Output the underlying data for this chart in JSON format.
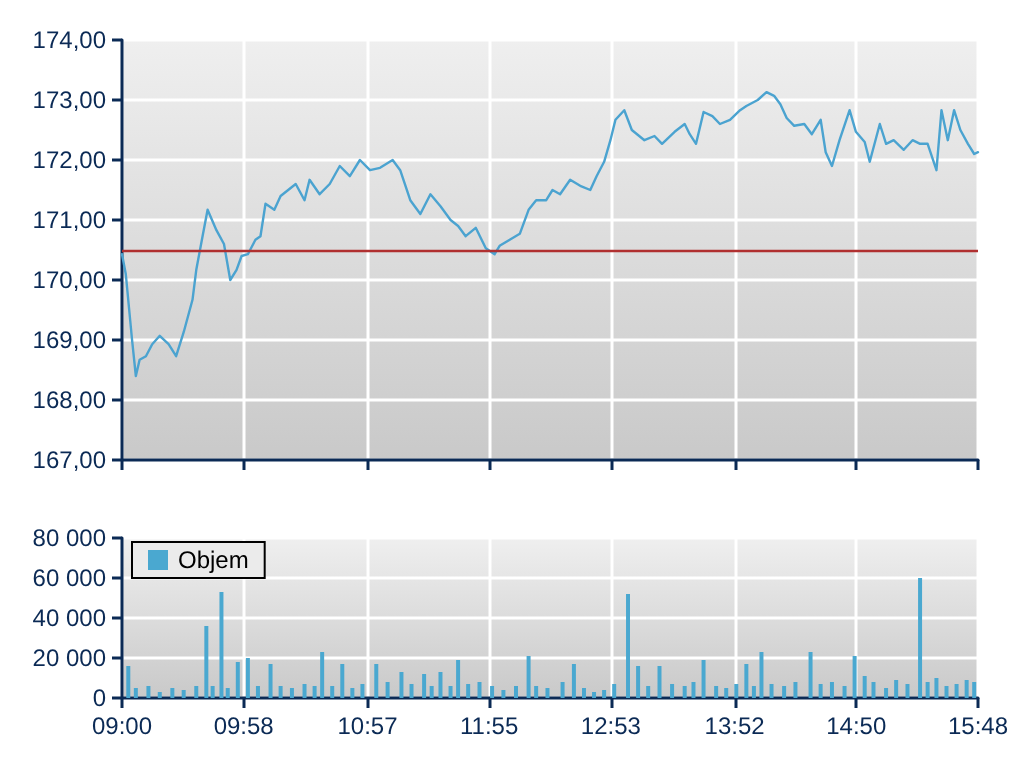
{
  "chart_data": [
    {
      "type": "line",
      "x": [
        9.0,
        9.03,
        9.08,
        9.11,
        9.14,
        9.19,
        9.24,
        9.3,
        9.37,
        9.43,
        9.49,
        9.56,
        9.59,
        9.64,
        9.68,
        9.75,
        9.81,
        9.86,
        9.91,
        9.95,
        10.0,
        10.06,
        10.1,
        10.14,
        10.21,
        10.26,
        10.32,
        10.38,
        10.45,
        10.49,
        10.57,
        10.65,
        10.73,
        10.81,
        10.89,
        10.97,
        11.05,
        11.15,
        11.21,
        11.29,
        11.37,
        11.45,
        11.53,
        11.61,
        11.67,
        11.73,
        11.81,
        11.89,
        11.96,
        12.0,
        12.08,
        12.16,
        12.23,
        12.29,
        12.37,
        12.42,
        12.48,
        12.56,
        12.64,
        12.72,
        12.77,
        12.83,
        12.88,
        12.92,
        12.99,
        13.05,
        13.15,
        13.23,
        13.29,
        13.39,
        13.47,
        13.51,
        13.56,
        13.62,
        13.69,
        13.75,
        13.83,
        13.91,
        13.96,
        14.05,
        14.12,
        14.18,
        14.23,
        14.28,
        14.34,
        14.42,
        14.48,
        14.55,
        14.59,
        14.64,
        14.7,
        14.78,
        14.83,
        14.9,
        14.94,
        15.02,
        15.07,
        15.13,
        15.21,
        15.28,
        15.34,
        15.4,
        15.47,
        15.51,
        15.56,
        15.61,
        15.66,
        15.72,
        15.77,
        15.8
      ],
      "series": [
        {
          "color": "#4ba3d0",
          "values": [
            170.43,
            170.1,
            169.0,
            168.4,
            168.67,
            168.73,
            168.93,
            169.07,
            168.93,
            168.73,
            169.13,
            169.67,
            170.17,
            170.73,
            171.17,
            170.83,
            170.6,
            170.0,
            170.17,
            170.4,
            170.43,
            170.67,
            170.73,
            171.27,
            171.17,
            171.4,
            171.5,
            171.6,
            171.33,
            171.67,
            171.43,
            171.6,
            171.9,
            171.73,
            172.0,
            171.83,
            171.87,
            172.0,
            171.83,
            171.33,
            171.1,
            171.43,
            171.23,
            171.0,
            170.9,
            170.73,
            170.87,
            170.53,
            170.43,
            170.57,
            170.67,
            170.77,
            171.17,
            171.33,
            171.33,
            171.5,
            171.43,
            171.67,
            171.57,
            171.5,
            171.73,
            171.97,
            172.33,
            172.67,
            172.83,
            172.5,
            172.33,
            172.4,
            172.27,
            172.47,
            172.6,
            172.43,
            172.27,
            172.8,
            172.73,
            172.6,
            172.67,
            172.83,
            172.9,
            173.0,
            173.13,
            173.07,
            172.93,
            172.7,
            172.57,
            172.6,
            172.43,
            172.67,
            172.13,
            171.9,
            172.33,
            172.83,
            172.47,
            172.3,
            171.97,
            172.6,
            172.27,
            172.33,
            172.17,
            172.33,
            172.27,
            172.27,
            171.83,
            172.83,
            172.33,
            172.83,
            172.5,
            172.27,
            172.1,
            172.13
          ]
        }
      ],
      "xlim": [
        9,
        15.8
      ],
      "xticks": [
        {
          "value": 9,
          "label": null
        },
        {
          "value": 9.9667,
          "label": null
        },
        {
          "value": 10.95,
          "label": null
        },
        {
          "value": 11.9167,
          "label": null
        },
        {
          "value": 12.8833,
          "label": null
        },
        {
          "value": 13.8667,
          "label": null
        },
        {
          "value": 14.8333,
          "label": null
        },
        {
          "value": 15.8,
          "label": null
        }
      ],
      "ylim": [
        167,
        174
      ],
      "yticks": [
        {
          "value": 167,
          "label": "167,00"
        },
        {
          "value": 168,
          "label": "168,00"
        },
        {
          "value": 169,
          "label": "169,00"
        },
        {
          "value": 170,
          "label": "170,00"
        },
        {
          "value": 171,
          "label": "171,00"
        },
        {
          "value": 172,
          "label": "172,00"
        },
        {
          "value": 173,
          "label": "173,00"
        },
        {
          "value": 174,
          "label": "174,00"
        }
      ],
      "ref_lines": [
        {
          "axis": "y",
          "value": 170.5,
          "color": "#b03030"
        }
      ],
      "grid": true,
      "marker": "none",
      "line_style": "solid",
      "tick_labels": "y"
    },
    {
      "type": "bar",
      "x": [
        9.05,
        9.11,
        9.21,
        9.3,
        9.4,
        9.49,
        9.59,
        9.67,
        9.72,
        9.79,
        9.84,
        9.92,
        10.0,
        10.08,
        10.18,
        10.26,
        10.35,
        10.45,
        10.53,
        10.59,
        10.67,
        10.75,
        10.83,
        10.91,
        11.02,
        11.11,
        11.22,
        11.3,
        11.4,
        11.46,
        11.53,
        11.61,
        11.67,
        11.75,
        11.84,
        11.94,
        12.03,
        12.13,
        12.23,
        12.29,
        12.38,
        12.5,
        12.59,
        12.67,
        12.75,
        12.83,
        12.91,
        13.02,
        13.1,
        13.18,
        13.27,
        13.37,
        13.47,
        13.54,
        13.62,
        13.72,
        13.8,
        13.88,
        13.96,
        14.02,
        14.08,
        14.16,
        14.26,
        14.35,
        14.47,
        14.55,
        14.64,
        14.74,
        14.82,
        14.9,
        14.97,
        15.07,
        15.15,
        15.24,
        15.34,
        15.4,
        15.47,
        15.55,
        15.63,
        15.71,
        15.77
      ],
      "series": [
        {
          "name": "Objem",
          "color": "#4aa8d0",
          "values": [
            16000,
            5000,
            6000,
            3000,
            5000,
            4000,
            6000,
            36000,
            6000,
            53000,
            5000,
            18000,
            20000,
            6000,
            17000,
            6000,
            5000,
            7000,
            6000,
            23000,
            6000,
            17000,
            5000,
            7000,
            17000,
            8000,
            13000,
            7000,
            12000,
            6000,
            13000,
            6000,
            19000,
            7000,
            8000,
            6000,
            4000,
            6000,
            21000,
            6000,
            5000,
            8000,
            17000,
            5000,
            3000,
            4000,
            7000,
            52000,
            16000,
            6000,
            16000,
            7000,
            6000,
            8000,
            19000,
            6000,
            5000,
            7000,
            17000,
            6000,
            23000,
            7000,
            6000,
            8000,
            23000,
            7000,
            8000,
            6000,
            21000,
            11000,
            8000,
            5000,
            9000,
            7000,
            60000,
            8000,
            10000,
            6000,
            7000,
            9000,
            8000
          ]
        }
      ],
      "xlim": [
        9,
        15.8
      ],
      "xticks": [
        {
          "value": 9,
          "label": "09:00"
        },
        {
          "value": 9.9667,
          "label": "09:58"
        },
        {
          "value": 10.95,
          "label": "10:57"
        },
        {
          "value": 11.9167,
          "label": "11:55"
        },
        {
          "value": 12.8833,
          "label": "12:53"
        },
        {
          "value": 13.8667,
          "label": "13:52"
        },
        {
          "value": 14.8333,
          "label": "14:50"
        },
        {
          "value": 15.8,
          "label": "15:48"
        }
      ],
      "ylim": [
        0,
        80000
      ],
      "yticks": [
        0,
        {
          "value": 20000,
          "label": "20 000"
        },
        {
          "value": 40000,
          "label": "40 000"
        },
        {
          "value": 60000,
          "label": "60 000"
        },
        {
          "value": 80000,
          "label": "80 000"
        }
      ],
      "grid": true,
      "legend": "top left"
    }
  ]
}
